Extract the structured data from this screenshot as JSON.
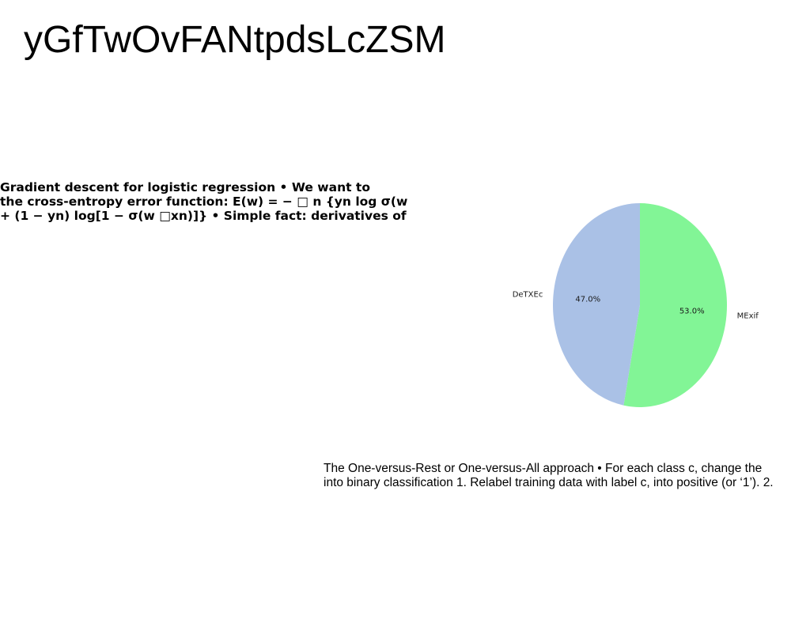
{
  "page": {
    "title": "yGfTwOvFANtpdsLcZSM"
  },
  "left_block": {
    "lines": [
      "Gradient descent for logistic regression • We want to",
      "the cross-entropy error function: E(w) = − □ n {yn log σ(w",
      "+ (1 − yn) log[1 − σ(w □xn)]} • Simple fact: derivatives of"
    ]
  },
  "bottom_block": {
    "lines": [
      "The One-versus-Rest or One-versus-All approach • For each class c, change the",
      "into binary classification 1. Relabel training data with label c, into positive (or ‘1’). 2."
    ]
  },
  "chart_data": {
    "type": "pie",
    "title": "",
    "categories": [
      "DeTXEc",
      "MExif"
    ],
    "values": [
      47.0,
      53.0
    ],
    "pct_labels": [
      "47.0%",
      "53.0%"
    ],
    "colors": [
      "#aac1e6",
      "#82f596"
    ],
    "start_angle_deg": 90,
    "direction": "clockwise-from-top: MExif first, then DeTXEc",
    "legend": "none"
  }
}
